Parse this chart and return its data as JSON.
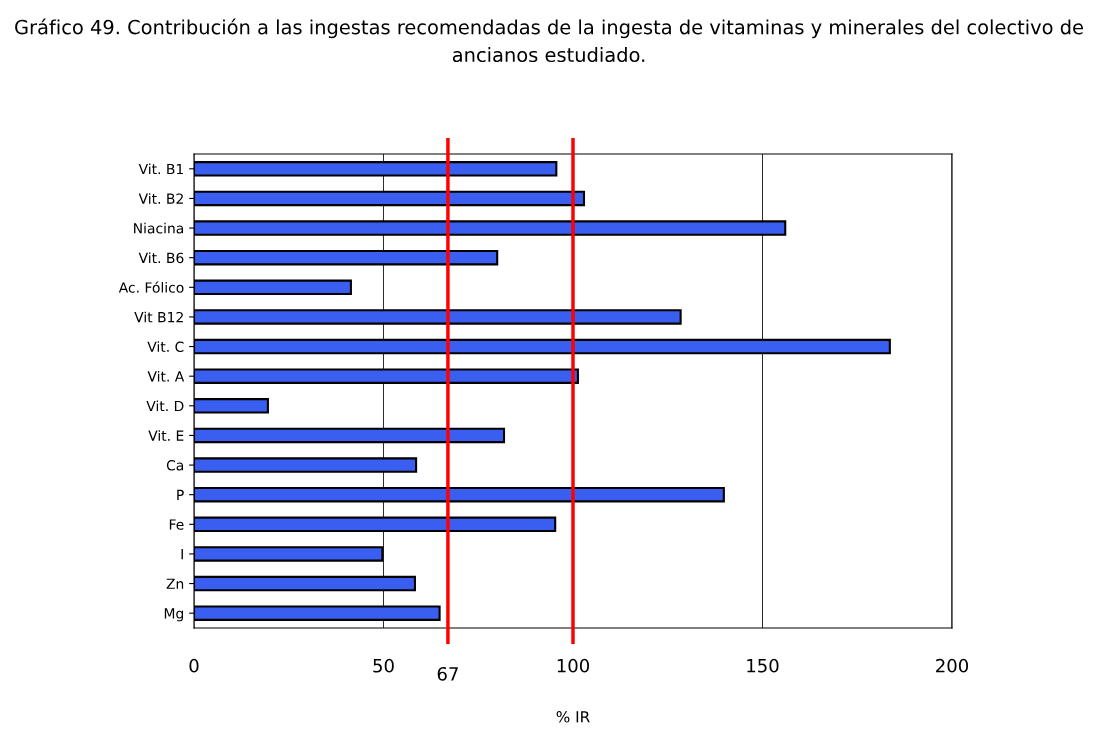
{
  "chart_data": {
    "type": "bar",
    "orientation": "horizontal",
    "title": "Gráfico 49. Contribución a las ingestas recomendadas de la ingesta de vitaminas y minerales del colectivo de ancianos estudiado.",
    "xlabel": "% IR",
    "categories": [
      "Vit. B1",
      "Vit. B2",
      "Niacina",
      "Vit. B6",
      "Ac. Fólico",
      "Vit B12",
      "Vit. C",
      "Vit. A",
      "Vit. D",
      "Vit. E",
      "Ca",
      "P",
      "Fe",
      "I",
      "Zn",
      "Mg"
    ],
    "values": [
      95.6,
      102.9,
      156,
      80,
      41.4,
      128.4,
      183.6,
      101.3,
      19.5,
      81.8,
      58.6,
      139.8,
      95.3,
      49.7,
      58.3,
      64.8
    ],
    "color": "#3a5ff0",
    "xlim": [
      0,
      200
    ],
    "xticks": [
      0,
      50,
      100,
      150,
      200
    ],
    "grid": "x",
    "ref_lines": [
      {
        "axis": "x",
        "value": 67,
        "label": "67",
        "color": "#ff0000"
      },
      {
        "axis": "x",
        "value": 100,
        "color": "#ff0000"
      }
    ]
  }
}
